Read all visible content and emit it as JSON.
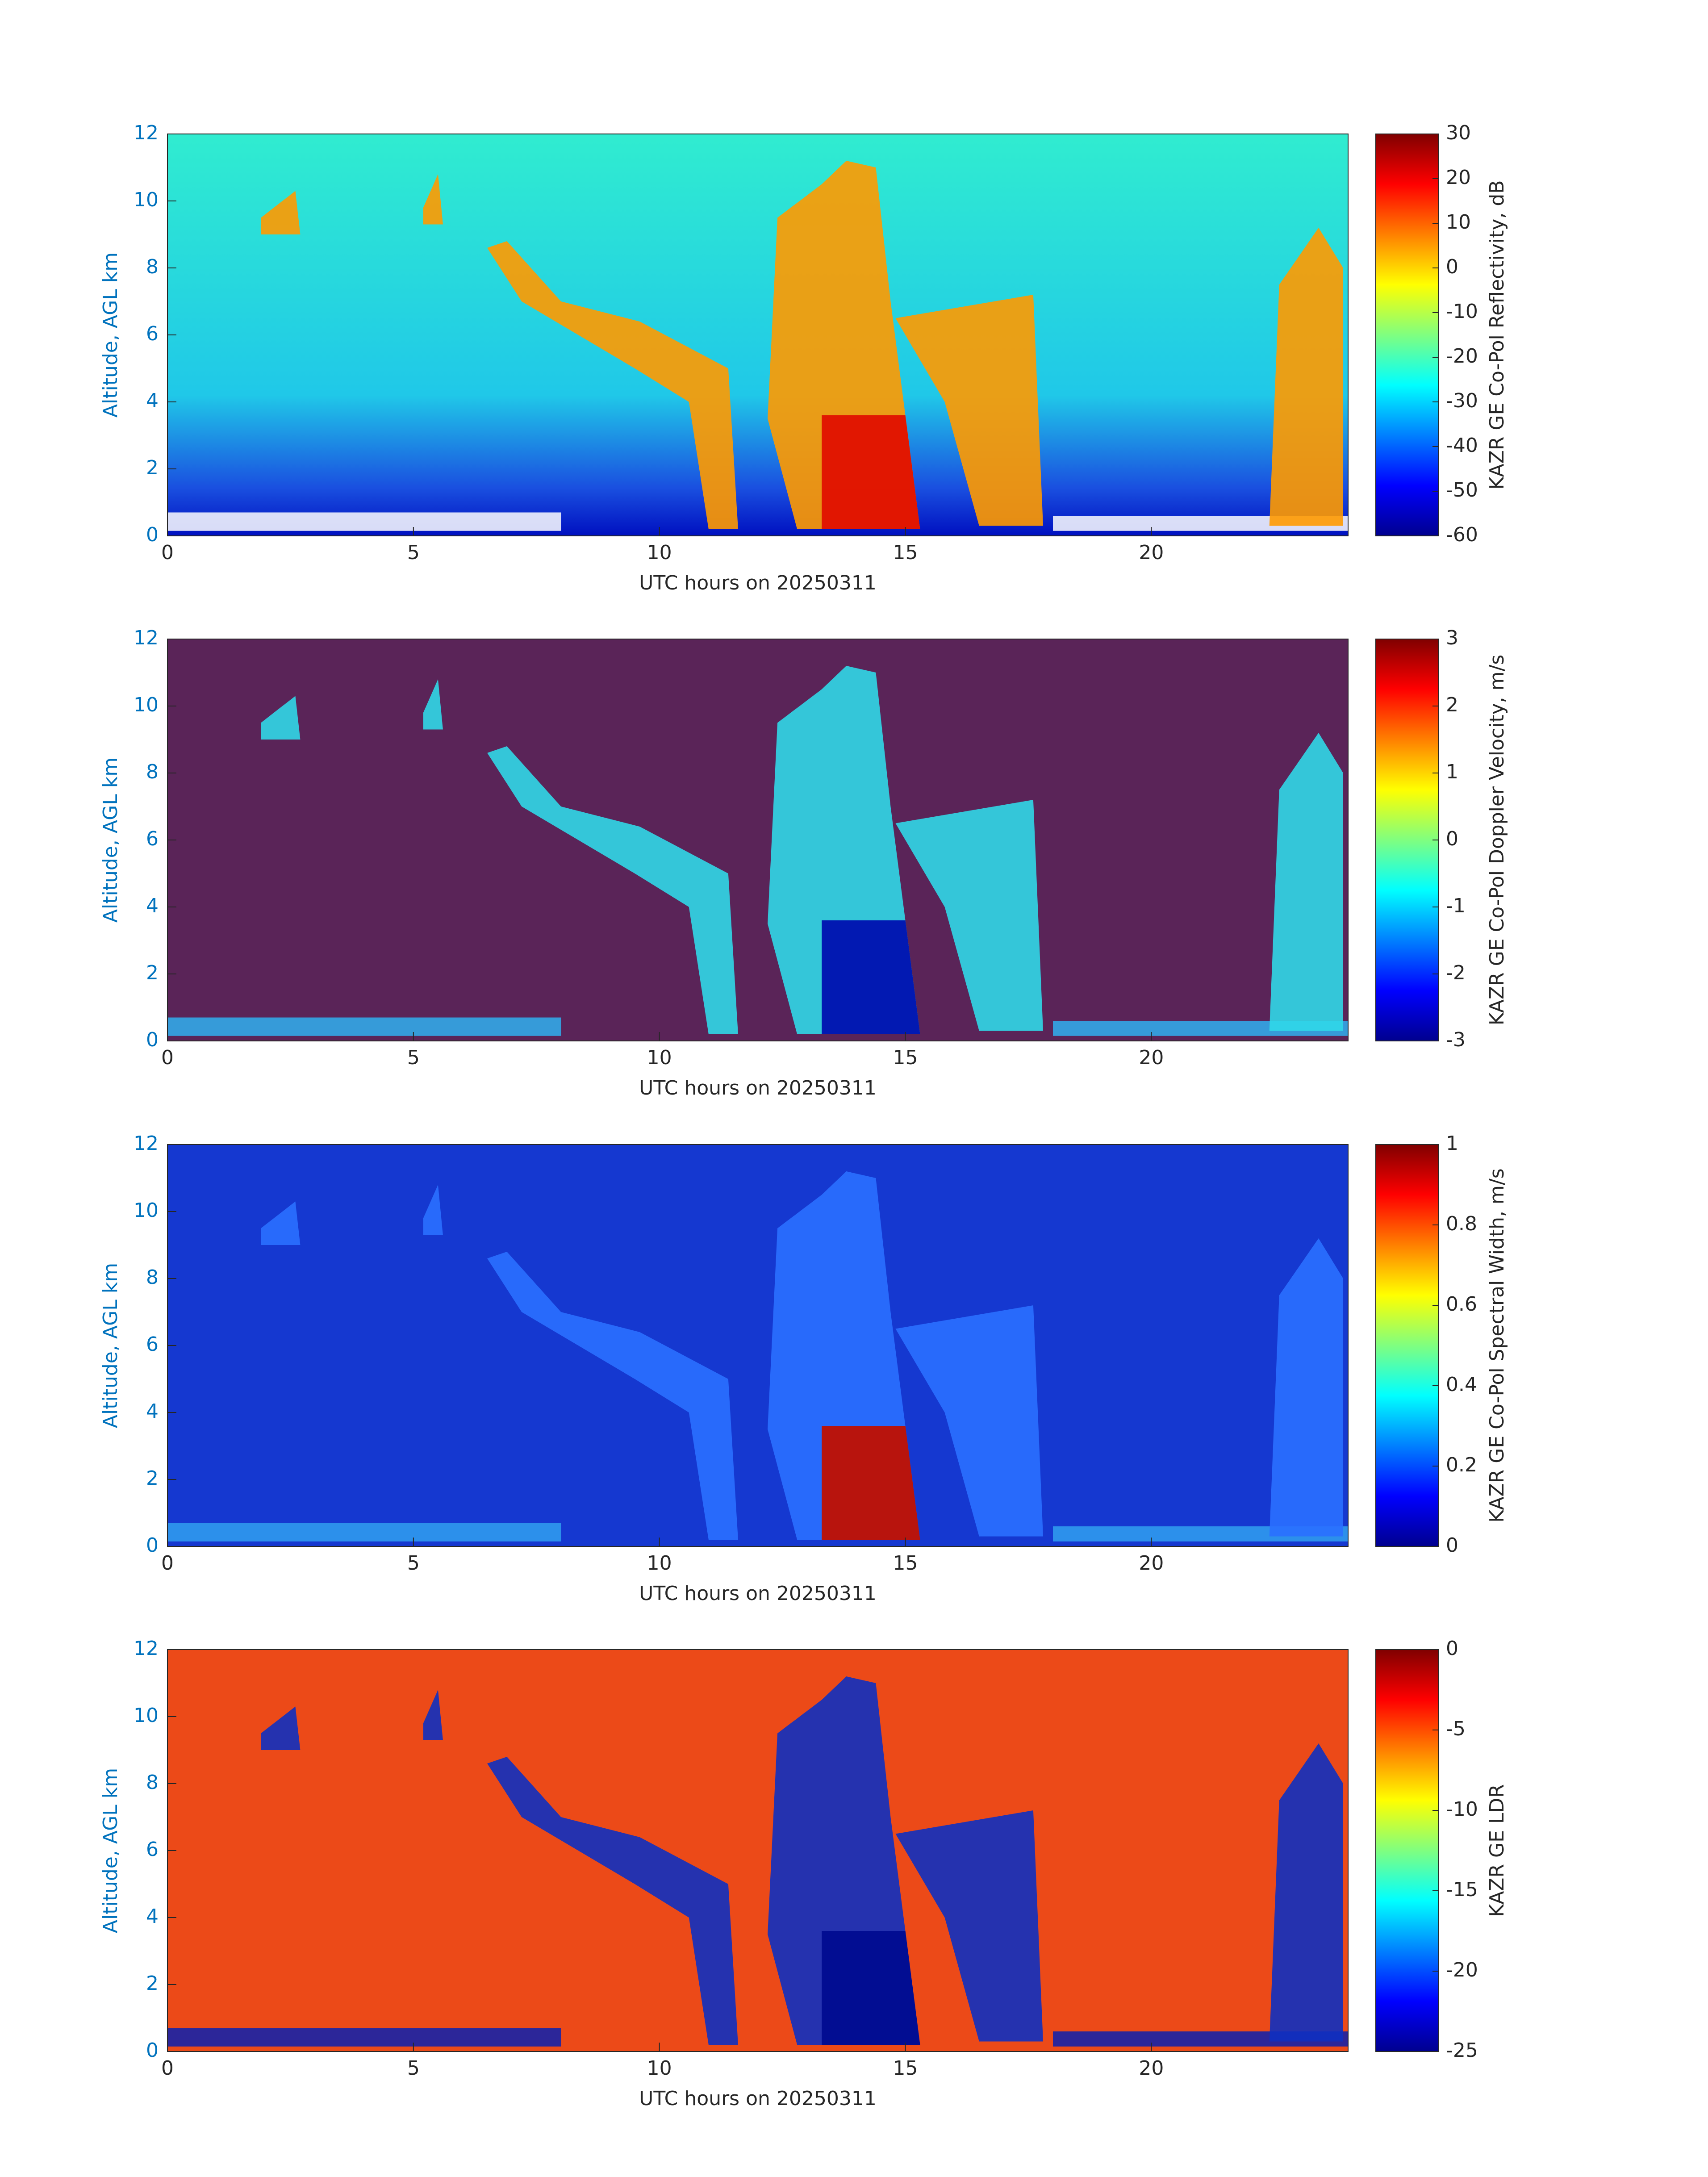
{
  "chart_data": [
    {
      "type": "heatmap",
      "xlabel": "UTC hours on 20250311",
      "ylabel": "Altitude, AGL km",
      "xlim": [
        0,
        24
      ],
      "xticks": [
        0,
        5,
        10,
        15,
        20
      ],
      "ylim": [
        0,
        12
      ],
      "yticks": [
        0,
        2,
        4,
        6,
        8,
        10,
        12
      ],
      "colormap": "jet",
      "colorbar_label": "KAZR GE Co-Pol Reflectivity, dB",
      "clim": [
        -60,
        30
      ],
      "cticks": [
        -60,
        -50,
        -40,
        -30,
        -20,
        -10,
        0,
        10,
        20,
        30
      ]
    },
    {
      "type": "heatmap",
      "xlabel": "UTC hours on 20250311",
      "ylabel": "Altitude, AGL km",
      "xlim": [
        0,
        24
      ],
      "xticks": [
        0,
        5,
        10,
        15,
        20
      ],
      "ylim": [
        0,
        12
      ],
      "yticks": [
        0,
        2,
        4,
        6,
        8,
        10,
        12
      ],
      "colormap": "jet",
      "colorbar_label": "KAZR GE Co-Pol Doppler Velocity, m/s",
      "clim": [
        -3,
        3
      ],
      "cticks": [
        -3,
        -2,
        -1,
        0,
        1,
        2,
        3
      ]
    },
    {
      "type": "heatmap",
      "xlabel": "UTC hours on 20250311",
      "ylabel": "Altitude, AGL km",
      "xlim": [
        0,
        24
      ],
      "xticks": [
        0,
        5,
        10,
        15,
        20
      ],
      "ylim": [
        0,
        12
      ],
      "yticks": [
        0,
        2,
        4,
        6,
        8,
        10,
        12
      ],
      "colormap": "jet",
      "colorbar_label": "KAZR GE Co-Pol Spectral Width, m/s",
      "clim": [
        0,
        1
      ],
      "cticks": [
        0,
        0.2,
        0.4,
        0.6,
        0.8,
        1
      ]
    },
    {
      "type": "heatmap",
      "xlabel": "UTC hours on 20250311",
      "ylabel": "Altitude, AGL km",
      "xlim": [
        0,
        24
      ],
      "xticks": [
        0,
        5,
        10,
        15,
        20
      ],
      "ylim": [
        0,
        12
      ],
      "yticks": [
        0,
        2,
        4,
        6,
        8,
        10,
        12
      ],
      "colormap": "jet",
      "colorbar_label": "KAZR GE LDR",
      "clim": [
        -25,
        0
      ],
      "cticks": [
        -25,
        -20,
        -15,
        -10,
        -5,
        0
      ]
    }
  ]
}
